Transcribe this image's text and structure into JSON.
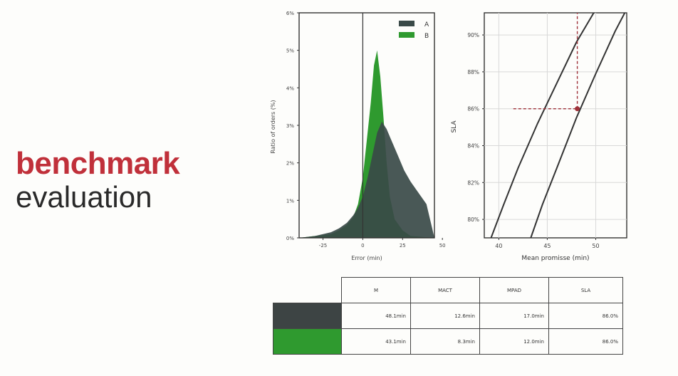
{
  "slide": {
    "title_line1": "benchmark",
    "title_line2": "evaluation",
    "accent_color": "#c0303a"
  },
  "chart_data": [
    {
      "type": "area",
      "xlabel": "Error (min)",
      "ylabel": "Ratio of orders (%)",
      "x_ticks": [
        "-25",
        "0",
        "25",
        "50"
      ],
      "y_ticks": [
        "0%",
        "1%",
        "2%",
        "3%",
        "4%",
        "5%",
        "6%"
      ],
      "xlim": [
        -40,
        45
      ],
      "ylim": [
        0,
        6
      ],
      "legend": "top-right",
      "series": [
        {
          "name": "A",
          "color": "#3a4a48",
          "x": [
            -40,
            -30,
            -20,
            -15,
            -10,
            -6,
            -3,
            0,
            3,
            6,
            9,
            12,
            15,
            18,
            22,
            26,
            30,
            35,
            40,
            45
          ],
          "y": [
            0,
            0.05,
            0.15,
            0.25,
            0.4,
            0.6,
            0.8,
            1.1,
            1.6,
            2.2,
            2.8,
            3.1,
            2.9,
            2.6,
            2.2,
            1.8,
            1.5,
            1.2,
            0.9,
            0
          ]
        },
        {
          "name": "B",
          "color": "#2f9a2f",
          "x": [
            -40,
            -30,
            -20,
            -15,
            -10,
            -6,
            -3,
            0,
            2,
            5,
            7,
            9,
            11,
            13,
            15,
            17,
            20,
            25,
            30,
            45
          ],
          "y": [
            0,
            0.05,
            0.1,
            0.2,
            0.35,
            0.55,
            0.9,
            1.6,
            2.4,
            3.6,
            4.6,
            5.0,
            4.3,
            3.2,
            2.0,
            1.1,
            0.5,
            0.2,
            0.05,
            0
          ]
        }
      ]
    },
    {
      "type": "line",
      "xlabel": "Mean promisse (min)",
      "ylabel": "SLA",
      "x_ticks": [
        "40",
        "45",
        "50"
      ],
      "y_ticks": [
        "80%",
        "82%",
        "84%",
        "86%",
        "88%",
        "90%"
      ],
      "xlim": [
        38.5,
        53.2
      ],
      "ylim": [
        79,
        91.2
      ],
      "marker": {
        "x": 48.1,
        "y": 86
      },
      "series": [
        {
          "color": "#333333",
          "x": [
            39.2,
            40.5,
            42,
            44,
            46,
            48,
            49.8
          ],
          "y": [
            79,
            80.8,
            82.8,
            85.2,
            87.4,
            89.6,
            91.2
          ]
        },
        {
          "color": "#333333",
          "x": [
            43.3,
            44.5,
            46,
            48,
            50,
            52,
            53.4
          ],
          "y": [
            79,
            80.8,
            82.8,
            85.5,
            87.9,
            90.2,
            91.6
          ]
        }
      ]
    }
  ],
  "table": {
    "headers": [
      "M",
      "MACT",
      "MPAD",
      "SLA"
    ],
    "rows": [
      {
        "color": "#3d4444",
        "values": [
          "48.1min",
          "12.6min",
          "17.0min",
          "86.0%"
        ]
      },
      {
        "color": "#2f9a2f",
        "values": [
          "43.1min",
          "8.3min",
          "12.0min",
          "86.0%"
        ]
      }
    ]
  }
}
